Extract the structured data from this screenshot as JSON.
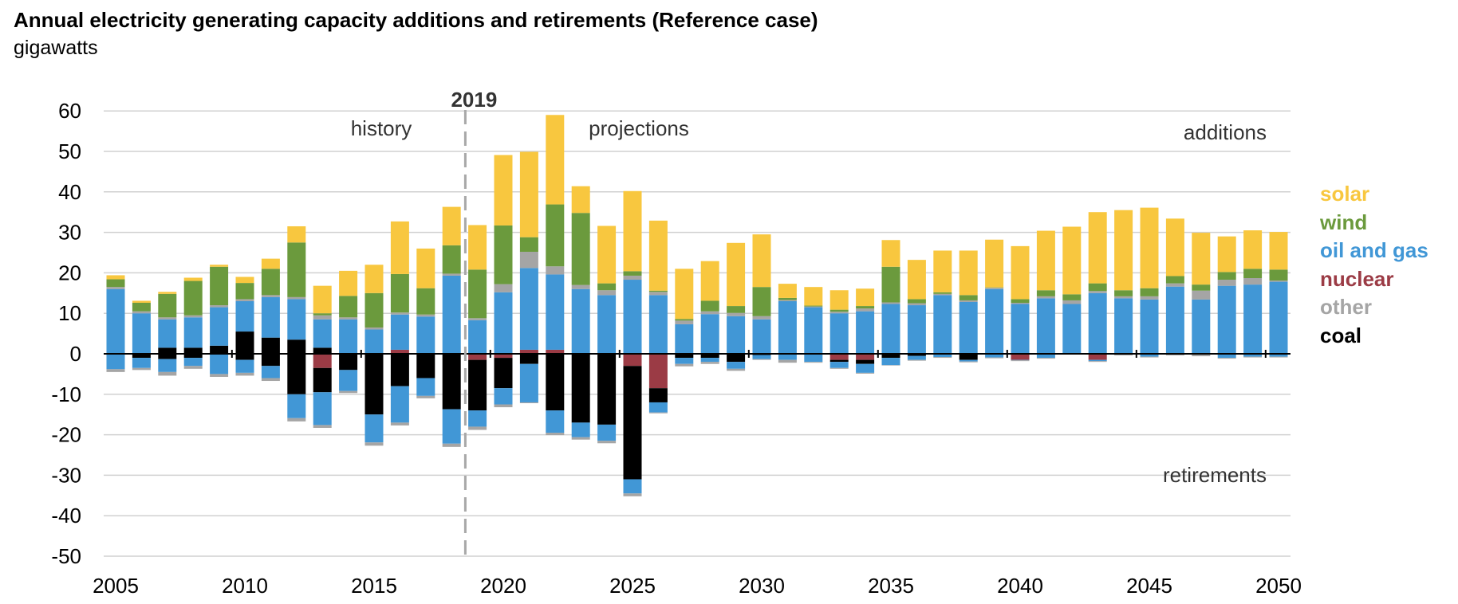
{
  "header": {
    "title": "Annual electricity generating capacity additions and retirements (Reference case)",
    "subtitle": "gigawatts"
  },
  "colors": {
    "solar": "#f8c73f",
    "wind": "#6b9a3d",
    "oil_and_gas": "#4197d6",
    "nuclear": "#9b3b45",
    "other": "#a5a5a5",
    "coal": "#000000",
    "grid": "#d0d0d0",
    "divider": "#a8a8a8"
  },
  "chart_data": {
    "type": "bar",
    "stacked": true,
    "title": "Annual electricity generating capacity additions and retirements (Reference case)",
    "ylabel": "gigawatts",
    "ylim": [
      -50,
      60
    ],
    "yticks": [
      60,
      50,
      40,
      30,
      20,
      10,
      0,
      -10,
      -20,
      -30,
      -40,
      -50
    ],
    "x_tick_labels": [
      "2005",
      "2010",
      "2015",
      "2020",
      "2025",
      "2030",
      "2035",
      "2040",
      "2045",
      "2050"
    ],
    "annotations": {
      "divider_year": "2019",
      "history": "history",
      "projections": "projections",
      "additions": "additions",
      "retirements": "retirements"
    },
    "legend": [
      {
        "key": "solar",
        "label": "solar"
      },
      {
        "key": "wind",
        "label": "wind"
      },
      {
        "key": "oil_and_gas",
        "label": "oil and gas"
      },
      {
        "key": "nuclear",
        "label": "nuclear"
      },
      {
        "key": "other",
        "label": "other"
      },
      {
        "key": "coal",
        "label": "coal"
      }
    ],
    "years": [
      2005,
      2006,
      2007,
      2008,
      2009,
      2010,
      2011,
      2012,
      2013,
      2014,
      2015,
      2016,
      2017,
      2018,
      2019,
      2020,
      2021,
      2022,
      2023,
      2024,
      2025,
      2026,
      2027,
      2028,
      2029,
      2030,
      2031,
      2032,
      2033,
      2034,
      2035,
      2036,
      2037,
      2038,
      2039,
      2040,
      2041,
      2042,
      2043,
      2044,
      2045,
      2046,
      2047,
      2048,
      2049,
      2050
    ],
    "additions": {
      "coal": [
        0,
        0,
        1.5,
        1.5,
        2,
        5.5,
        4,
        3.5,
        1.5,
        0,
        0,
        0,
        0,
        0,
        0,
        0,
        0,
        0,
        0,
        0,
        0,
        0,
        0,
        0,
        0,
        0,
        0,
        0,
        0,
        0,
        0,
        0,
        0,
        0,
        0,
        0,
        0,
        0,
        0,
        0,
        0,
        0,
        0,
        0,
        0,
        0
      ],
      "nuclear": [
        0,
        0,
        0,
        0,
        0,
        0,
        0,
        0,
        0,
        0,
        0,
        1,
        0,
        0,
        0,
        0,
        1,
        1,
        0,
        0,
        0,
        0,
        0,
        0,
        0,
        0,
        0,
        0,
        0,
        0,
        0,
        0,
        0,
        0,
        0,
        0,
        0,
        0,
        0,
        0,
        0,
        0,
        0,
        0,
        0,
        0
      ],
      "oil_and_gas": [
        16,
        10,
        7,
        7.5,
        9.5,
        7.5,
        10,
        10,
        7,
        8.5,
        6,
        8.7,
        9.2,
        19.3,
        8.3,
        15.2,
        20.2,
        18.6,
        16,
        14.5,
        18.3,
        14.5,
        7.3,
        9.8,
        9.3,
        8.5,
        13,
        11.5,
        10,
        10.5,
        12.3,
        12,
        14.5,
        12.8,
        16,
        12.3,
        13.7,
        12.3,
        15,
        13.7,
        13.4,
        16.6,
        13.4,
        16.8,
        17.1,
        17.8
      ],
      "other": [
        0.5,
        0.5,
        0.5,
        0.5,
        0.5,
        0.5,
        0.5,
        0.5,
        1,
        0.5,
        0.5,
        0.5,
        0.5,
        0.5,
        0.5,
        2,
        4,
        2,
        1,
        1.2,
        1,
        0.8,
        0.9,
        0.7,
        0.8,
        0.8,
        0.3,
        0.2,
        0.4,
        0.7,
        0.4,
        0.5,
        0.3,
        0.4,
        0.3,
        0.3,
        0.5,
        0.9,
        0.5,
        0.5,
        0.8,
        0.8,
        2.2,
        1.5,
        1.6,
        0.3
      ],
      "wind": [
        1.9,
        2.1,
        5.8,
        8.5,
        9.5,
        4,
        6.5,
        13.5,
        0.5,
        5.3,
        8.5,
        9.5,
        6.5,
        7,
        12,
        14.5,
        3.6,
        15.3,
        17.8,
        1.7,
        1.1,
        0.3,
        0.4,
        2.6,
        1.7,
        7.2,
        0.5,
        0.2,
        0.5,
        0.6,
        8.8,
        1,
        0.4,
        1.3,
        0.1,
        0.9,
        1.5,
        1.5,
        1.9,
        1.5,
        2,
        1.8,
        1.5,
        1.9,
        2.3,
        2.7
      ],
      "solar": [
        1,
        0.5,
        0.5,
        0.8,
        0.5,
        1.5,
        2.5,
        4,
        6.8,
        6.2,
        7,
        13,
        9.8,
        9.5,
        11,
        17.4,
        21.1,
        22.1,
        6.6,
        14.2,
        19.8,
        17.3,
        12.4,
        9.8,
        15.6,
        13,
        3.5,
        4.6,
        4.8,
        4.3,
        6.6,
        9.7,
        10.3,
        11,
        11.8,
        13.1,
        14.7,
        16.7,
        17.6,
        19.8,
        19.9,
        14.2,
        12.8,
        8.8,
        9.5,
        9.3
      ]
    },
    "retirements": {
      "nuclear": [
        0,
        0,
        0,
        0,
        0,
        0,
        0,
        0,
        3.5,
        0,
        0,
        0,
        0,
        0,
        1.5,
        1,
        0,
        0,
        0,
        0,
        3,
        8.5,
        0,
        0,
        0,
        0,
        0,
        0,
        1.5,
        1.5,
        0,
        0,
        0,
        0,
        0,
        1.5,
        0,
        0,
        1.5,
        0,
        0,
        0,
        0,
        0,
        0,
        0
      ],
      "coal": [
        0,
        1,
        1.3,
        1,
        0,
        1.5,
        3,
        10,
        6,
        4,
        15,
        8,
        6,
        13.7,
        12.5,
        7.5,
        2.5,
        14,
        17,
        17.5,
        28,
        3.5,
        1,
        1,
        2,
        0.3,
        0,
        0,
        0.5,
        1,
        1,
        0.5,
        0,
        1.5,
        0,
        0,
        0,
        0,
        0,
        0,
        0,
        0,
        0,
        0,
        0,
        0
      ],
      "oil_and_gas": [
        3.8,
        2.5,
        3.2,
        2,
        5,
        3.2,
        3,
        5.9,
        8.1,
        5.2,
        6.9,
        9,
        4.4,
        8.5,
        4,
        4,
        9.5,
        5.5,
        3.6,
        4,
        3.5,
        2.5,
        1.5,
        1,
        1.7,
        1,
        1.5,
        2,
        1.5,
        2.2,
        1.8,
        1,
        0.8,
        0.4,
        0.9,
        0.1,
        1,
        0,
        0.3,
        0.2,
        0.7,
        0.2,
        0,
        1,
        0.7,
        0.7
      ],
      "other": [
        0.7,
        0.5,
        0.9,
        0.7,
        0.7,
        0.7,
        0.7,
        0.8,
        0.7,
        0.5,
        0.8,
        0.7,
        0.6,
        0.8,
        0.8,
        0.7,
        0.2,
        0.6,
        0.6,
        0.6,
        0.7,
        0.2,
        0.6,
        0.5,
        0.5,
        0.2,
        0.7,
        0.2,
        0.2,
        0.2,
        0.1,
        0.2,
        0.2,
        0.2,
        0.2,
        0.2,
        0.2,
        0.2,
        0.2,
        0.2,
        0.2,
        0.2,
        0.6,
        0.2,
        0.2,
        0.2
      ]
    }
  }
}
